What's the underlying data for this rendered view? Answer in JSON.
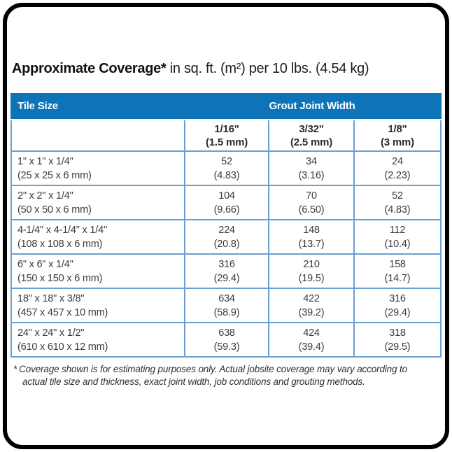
{
  "title": {
    "main": "Approximate Coverage*",
    "suffix": "in sq. ft. (m²) per 10 lbs. (4.54 kg)"
  },
  "table": {
    "header": {
      "tile_size": "Tile Size",
      "grout_joint_width": "Grout Joint Width"
    },
    "joint_columns": [
      {
        "width": "1/16\"",
        "metric": "(1.5 mm)"
      },
      {
        "width": "3/32\"",
        "metric": "(2.5 mm)"
      },
      {
        "width": "1/8\"",
        "metric": "(3 mm)"
      }
    ],
    "rows": [
      {
        "size": "1\" x 1\" x 1/4\"",
        "size_metric": "(25 x 25 x 6 mm)",
        "values": [
          {
            "sqft": "52",
            "m2": "(4.83)"
          },
          {
            "sqft": "34",
            "m2": "(3.16)"
          },
          {
            "sqft": "24",
            "m2": "(2.23)"
          }
        ]
      },
      {
        "size": "2\" x 2\" x 1/4\"",
        "size_metric": "(50 x 50 x 6 mm)",
        "values": [
          {
            "sqft": "104",
            "m2": "(9.66)"
          },
          {
            "sqft": "70",
            "m2": "(6.50)"
          },
          {
            "sqft": "52",
            "m2": "(4.83)"
          }
        ]
      },
      {
        "size": "4-1/4\" x 4-1/4\" x 1/4\"",
        "size_metric": "(108 x 108 x 6 mm)",
        "values": [
          {
            "sqft": "224",
            "m2": "(20.8)"
          },
          {
            "sqft": "148",
            "m2": "(13.7)"
          },
          {
            "sqft": "112",
            "m2": "(10.4)"
          }
        ]
      },
      {
        "size": "6\" x 6\" x 1/4\"",
        "size_metric": "(150 x 150 x 6 mm)",
        "values": [
          {
            "sqft": "316",
            "m2": "(29.4)"
          },
          {
            "sqft": "210",
            "m2": "(19.5)"
          },
          {
            "sqft": "158",
            "m2": "(14.7)"
          }
        ]
      },
      {
        "size": "18\" x 18\" x 3/8\"",
        "size_metric": "(457 x 457 x 10 mm)",
        "values": [
          {
            "sqft": "634",
            "m2": "(58.9)"
          },
          {
            "sqft": "422",
            "m2": "(39.2)"
          },
          {
            "sqft": "316",
            "m2": "(29.4)"
          }
        ]
      },
      {
        "size": "24\" x 24\" x 1/2\"",
        "size_metric": "(610 x 610 x 12 mm)",
        "values": [
          {
            "sqft": "638",
            "m2": "(59.3)"
          },
          {
            "sqft": "424",
            "m2": "(39.4)"
          },
          {
            "sqft": "318",
            "m2": "(29.5)"
          }
        ]
      }
    ]
  },
  "footnote": {
    "marker": "*",
    "text": "Coverage shown is for estimating purposes only. Actual jobsite coverage may vary according to actual tile size and thickness, exact joint width, job conditions and grouting methods."
  },
  "colors": {
    "header_blue": "#0e74ba",
    "grid_blue": "#6b9fd2",
    "frame_black": "#000000",
    "body_text": "#3c3c3e"
  }
}
